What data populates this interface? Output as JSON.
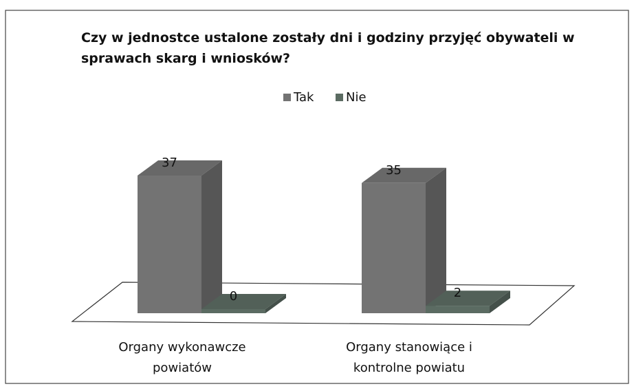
{
  "chart_data": {
    "type": "bar3d",
    "title": "Czy w jednostce ustalone zostały dni i godziny przyjęć obywateli w sprawach skarg i wniosków?",
    "categories": [
      "Organy wykonawcze powiatów",
      "Organy stanowiące i kontrolne powiatu"
    ],
    "series": [
      {
        "name": "Tak",
        "color": "#737373",
        "values": [
          37,
          35
        ]
      },
      {
        "name": "Nie",
        "color": "#5b6b62",
        "values": [
          0,
          2
        ]
      }
    ],
    "legend": "top"
  }
}
